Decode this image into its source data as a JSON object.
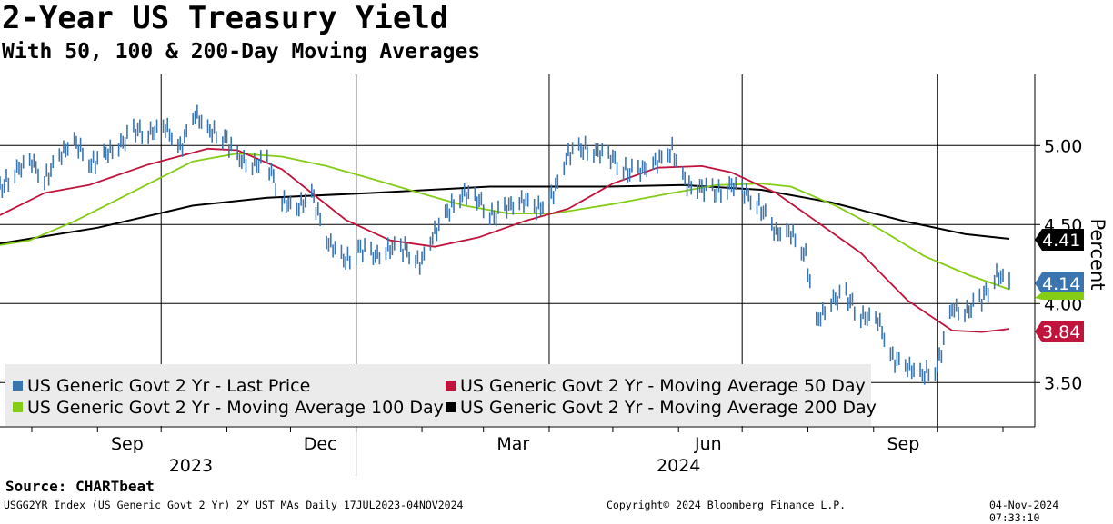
{
  "header": {
    "title": "2-Year US Treasury Yield",
    "subtitle": "With 50, 100 & 200-Day Moving Averages"
  },
  "footer": {
    "source": "Source: CHARTbeat",
    "ticker_info": "USGG2YR Index (US Generic Govt 2 Yr) 2Y UST MAs  Daily 17JUL2023-04NOV2024",
    "copyright": "Copyright© 2024 Bloomberg Finance L.P.",
    "timestamp": "04-Nov-2024 07:33:10"
  },
  "colors": {
    "price": "#3a75b0",
    "ma50": "#c0143c",
    "ma100": "#84cc16",
    "ma200": "#000000",
    "grid": "#000000",
    "legend_bg": "#ebebeb"
  },
  "chart_data": {
    "type": "line",
    "title": "2-Year US Treasury Yield",
    "subtitle": "With 50, 100 & 200-Day Moving Averages",
    "ylabel": "Percent",
    "xlabel": "",
    "ylim": [
      3.22,
      5.45
    ],
    "y_ticks": [
      "3.50",
      "4.00",
      "4.50",
      "5.00"
    ],
    "x_range": [
      "2023-07-17",
      "2024-11-04"
    ],
    "x_month_ticks": [
      {
        "label": "Sep",
        "date": "2023-09-15"
      },
      {
        "label": "Dec",
        "date": "2023-12-15"
      },
      {
        "label": "Mar",
        "date": "2024-03-15"
      },
      {
        "label": "Jun",
        "date": "2024-06-15"
      },
      {
        "label": "Sep",
        "date": "2024-09-15"
      }
    ],
    "x_year_labels": [
      {
        "label": "2023",
        "date": "2023-10-15"
      },
      {
        "label": "2024",
        "date": "2024-06-01"
      }
    ],
    "legend": [
      "US Generic Govt 2 Yr - Last Price",
      "US Generic Govt 2 Yr - Moving Average 50 Day",
      "US Generic Govt 2 Yr - Moving Average 100 Day",
      "US Generic Govt 2 Yr - Moving Average 200 Day"
    ],
    "last_values": [
      {
        "series": "ma200",
        "value": "4.41"
      },
      {
        "series": "price",
        "value": "4.14"
      },
      {
        "series": "ma50",
        "value": "3.84"
      }
    ],
    "series": [
      {
        "name": "US Generic Govt 2 Yr - Last Price",
        "key": "price",
        "points": [
          [
            "2023-07-17",
            4.72
          ],
          [
            "2023-07-24",
            4.84
          ],
          [
            "2023-08-01",
            4.9
          ],
          [
            "2023-08-07",
            4.78
          ],
          [
            "2023-08-15",
            4.95
          ],
          [
            "2023-08-21",
            5.03
          ],
          [
            "2023-08-29",
            4.88
          ],
          [
            "2023-09-05",
            4.95
          ],
          [
            "2023-09-12",
            5.01
          ],
          [
            "2023-09-19",
            5.1
          ],
          [
            "2023-09-26",
            5.08
          ],
          [
            "2023-10-03",
            5.12
          ],
          [
            "2023-10-10",
            4.98
          ],
          [
            "2023-10-17",
            5.2
          ],
          [
            "2023-10-23",
            5.1
          ],
          [
            "2023-10-31",
            5.05
          ],
          [
            "2023-11-06",
            4.92
          ],
          [
            "2023-11-13",
            4.88
          ],
          [
            "2023-11-20",
            4.9
          ],
          [
            "2023-11-27",
            4.65
          ],
          [
            "2023-12-04",
            4.6
          ],
          [
            "2023-12-11",
            4.7
          ],
          [
            "2023-12-18",
            4.4
          ],
          [
            "2023-12-27",
            4.27
          ],
          [
            "2024-01-03",
            4.35
          ],
          [
            "2024-01-10",
            4.3
          ],
          [
            "2024-01-17",
            4.35
          ],
          [
            "2024-01-24",
            4.35
          ],
          [
            "2024-01-31",
            4.25
          ],
          [
            "2024-02-07",
            4.45
          ],
          [
            "2024-02-14",
            4.6
          ],
          [
            "2024-02-21",
            4.7
          ],
          [
            "2024-02-28",
            4.65
          ],
          [
            "2024-03-06",
            4.55
          ],
          [
            "2024-03-13",
            4.62
          ],
          [
            "2024-03-20",
            4.65
          ],
          [
            "2024-03-27",
            4.6
          ],
          [
            "2024-04-03",
            4.7
          ],
          [
            "2024-04-10",
            4.95
          ],
          [
            "2024-04-17",
            4.98
          ],
          [
            "2024-04-24",
            4.96
          ],
          [
            "2024-05-01",
            4.92
          ],
          [
            "2024-05-08",
            4.83
          ],
          [
            "2024-05-15",
            4.85
          ],
          [
            "2024-05-22",
            4.9
          ],
          [
            "2024-05-29",
            4.97
          ],
          [
            "2024-06-05",
            4.75
          ],
          [
            "2024-06-12",
            4.73
          ],
          [
            "2024-06-19",
            4.7
          ],
          [
            "2024-06-26",
            4.75
          ],
          [
            "2024-07-03",
            4.7
          ],
          [
            "2024-07-10",
            4.6
          ],
          [
            "2024-07-17",
            4.45
          ],
          [
            "2024-07-24",
            4.45
          ],
          [
            "2024-07-31",
            4.3
          ],
          [
            "2024-08-05",
            3.88
          ],
          [
            "2024-08-12",
            4.02
          ],
          [
            "2024-08-19",
            4.05
          ],
          [
            "2024-08-26",
            3.92
          ],
          [
            "2024-09-03",
            3.9
          ],
          [
            "2024-09-10",
            3.65
          ],
          [
            "2024-09-17",
            3.6
          ],
          [
            "2024-09-24",
            3.55
          ],
          [
            "2024-10-01",
            3.6
          ],
          [
            "2024-10-08",
            3.97
          ],
          [
            "2024-10-15",
            3.95
          ],
          [
            "2024-10-22",
            4.03
          ],
          [
            "2024-10-29",
            4.18
          ],
          [
            "2024-11-04",
            4.14
          ]
        ]
      },
      {
        "name": "US Generic Govt 2 Yr - Moving Average 50 Day",
        "key": "ma50",
        "points": [
          [
            "2023-07-17",
            4.56
          ],
          [
            "2023-08-07",
            4.7
          ],
          [
            "2023-08-28",
            4.75
          ],
          [
            "2023-09-25",
            4.88
          ],
          [
            "2023-10-23",
            4.98
          ],
          [
            "2023-11-06",
            4.97
          ],
          [
            "2023-11-27",
            4.85
          ],
          [
            "2023-12-11",
            4.7
          ],
          [
            "2023-12-27",
            4.53
          ],
          [
            "2024-01-17",
            4.4
          ],
          [
            "2024-02-07",
            4.36
          ],
          [
            "2024-02-28",
            4.42
          ],
          [
            "2024-03-20",
            4.52
          ],
          [
            "2024-04-10",
            4.6
          ],
          [
            "2024-05-01",
            4.76
          ],
          [
            "2024-05-22",
            4.86
          ],
          [
            "2024-06-12",
            4.87
          ],
          [
            "2024-06-26",
            4.83
          ],
          [
            "2024-07-17",
            4.7
          ],
          [
            "2024-08-05",
            4.52
          ],
          [
            "2024-08-26",
            4.32
          ],
          [
            "2024-09-17",
            4.02
          ],
          [
            "2024-10-08",
            3.83
          ],
          [
            "2024-10-22",
            3.82
          ],
          [
            "2024-11-04",
            3.84
          ]
        ]
      },
      {
        "name": "US Generic Govt 2 Yr - Moving Average 100 Day",
        "key": "ma100",
        "points": [
          [
            "2023-07-17",
            4.37
          ],
          [
            "2023-07-31",
            4.4
          ],
          [
            "2023-08-21",
            4.52
          ],
          [
            "2023-09-18",
            4.71
          ],
          [
            "2023-10-16",
            4.9
          ],
          [
            "2023-11-06",
            4.95
          ],
          [
            "2023-11-27",
            4.93
          ],
          [
            "2023-12-18",
            4.87
          ],
          [
            "2024-01-08",
            4.79
          ],
          [
            "2024-01-31",
            4.7
          ],
          [
            "2024-02-21",
            4.62
          ],
          [
            "2024-03-13",
            4.57
          ],
          [
            "2024-04-03",
            4.57
          ],
          [
            "2024-05-01",
            4.63
          ],
          [
            "2024-05-29",
            4.7
          ],
          [
            "2024-06-19",
            4.75
          ],
          [
            "2024-07-10",
            4.76
          ],
          [
            "2024-07-24",
            4.74
          ],
          [
            "2024-08-14",
            4.62
          ],
          [
            "2024-09-04",
            4.47
          ],
          [
            "2024-09-25",
            4.3
          ],
          [
            "2024-10-16",
            4.18
          ],
          [
            "2024-11-04",
            4.09
          ]
        ]
      },
      {
        "name": "US Generic Govt 2 Yr - Moving Average 200 Day",
        "key": "ma200",
        "points": [
          [
            "2023-07-17",
            4.38
          ],
          [
            "2023-09-01",
            4.48
          ],
          [
            "2023-10-16",
            4.62
          ],
          [
            "2023-11-20",
            4.67
          ],
          [
            "2024-01-08",
            4.7
          ],
          [
            "2024-03-04",
            4.74
          ],
          [
            "2024-04-29",
            4.74
          ],
          [
            "2024-06-03",
            4.75
          ],
          [
            "2024-07-10",
            4.72
          ],
          [
            "2024-08-12",
            4.64
          ],
          [
            "2024-09-16",
            4.52
          ],
          [
            "2024-10-14",
            4.44
          ],
          [
            "2024-11-04",
            4.41
          ]
        ]
      }
    ]
  }
}
